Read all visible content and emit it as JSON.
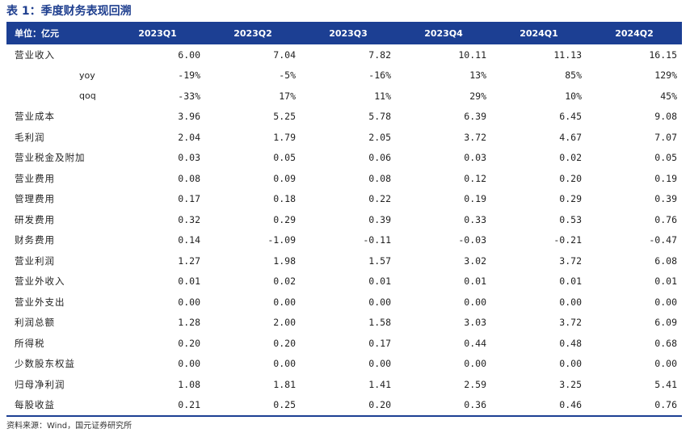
{
  "title": "表 1：季度财务表现回溯",
  "header": [
    "单位：亿元",
    "2023Q1",
    "2023Q2",
    "2023Q3",
    "2023Q4",
    "2024Q1",
    "2024Q2"
  ],
  "rows": [
    {
      "label": "营业收入",
      "sub": false,
      "values": [
        "6.00",
        "7.04",
        "7.82",
        "10.11",
        "11.13",
        "16.15"
      ]
    },
    {
      "label": "yoy",
      "sub": true,
      "values": [
        "-19%",
        "-5%",
        "-16%",
        "13%",
        "85%",
        "129%"
      ]
    },
    {
      "label": "qoq",
      "sub": true,
      "values": [
        "-33%",
        "17%",
        "11%",
        "29%",
        "10%",
        "45%"
      ]
    },
    {
      "label": "营业成本",
      "sub": false,
      "values": [
        "3.96",
        "5.25",
        "5.78",
        "6.39",
        "6.45",
        "9.08"
      ]
    },
    {
      "label": "毛利润",
      "sub": false,
      "values": [
        "2.04",
        "1.79",
        "2.05",
        "3.72",
        "4.67",
        "7.07"
      ]
    },
    {
      "label": "营业税金及附加",
      "sub": false,
      "values": [
        "0.03",
        "0.05",
        "0.06",
        "0.03",
        "0.02",
        "0.05"
      ]
    },
    {
      "label": "营业费用",
      "sub": false,
      "values": [
        "0.08",
        "0.09",
        "0.08",
        "0.12",
        "0.20",
        "0.19"
      ]
    },
    {
      "label": "管理费用",
      "sub": false,
      "values": [
        "0.17",
        "0.18",
        "0.22",
        "0.19",
        "0.29",
        "0.39"
      ]
    },
    {
      "label": "研发费用",
      "sub": false,
      "values": [
        "0.32",
        "0.29",
        "0.39",
        "0.33",
        "0.53",
        "0.76"
      ]
    },
    {
      "label": "财务费用",
      "sub": false,
      "values": [
        "0.14",
        "-1.09",
        "-0.11",
        "-0.03",
        "-0.21",
        "-0.47"
      ]
    },
    {
      "label": "营业利润",
      "sub": false,
      "values": [
        "1.27",
        "1.98",
        "1.57",
        "3.02",
        "3.72",
        "6.08"
      ]
    },
    {
      "label": "营业外收入",
      "sub": false,
      "values": [
        "0.01",
        "0.02",
        "0.01",
        "0.01",
        "0.01",
        "0.01"
      ]
    },
    {
      "label": "营业外支出",
      "sub": false,
      "values": [
        "0.00",
        "0.00",
        "0.00",
        "0.00",
        "0.00",
        "0.00"
      ]
    },
    {
      "label": "利润总额",
      "sub": false,
      "values": [
        "1.28",
        "2.00",
        "1.58",
        "3.03",
        "3.72",
        "6.09"
      ]
    },
    {
      "label": "所得税",
      "sub": false,
      "values": [
        "0.20",
        "0.20",
        "0.17",
        "0.44",
        "0.48",
        "0.68"
      ]
    },
    {
      "label": "少数股东权益",
      "sub": false,
      "values": [
        "0.00",
        "0.00",
        "0.00",
        "0.00",
        "0.00",
        "0.00"
      ]
    },
    {
      "label": "归母净利润",
      "sub": false,
      "values": [
        "1.08",
        "1.81",
        "1.41",
        "2.59",
        "3.25",
        "5.41"
      ]
    },
    {
      "label": "每股收益",
      "sub": false,
      "values": [
        "0.21",
        "0.25",
        "0.20",
        "0.36",
        "0.46",
        "0.76"
      ]
    }
  ],
  "source": "资料来源：Wind，国元证券研究所"
}
